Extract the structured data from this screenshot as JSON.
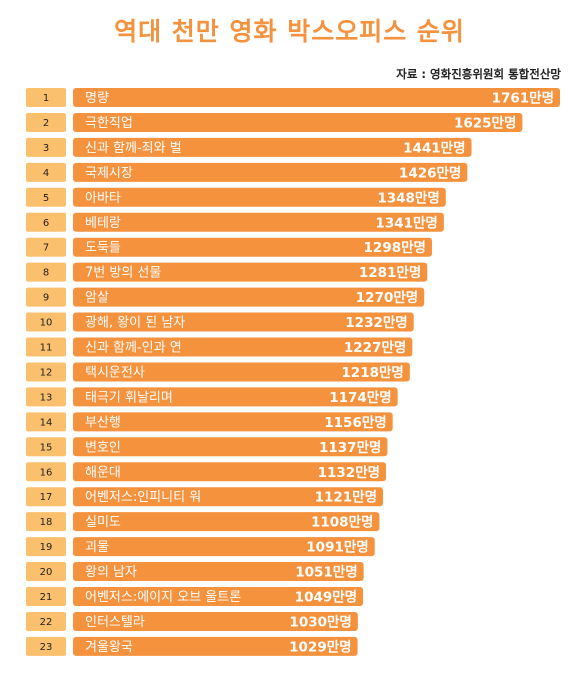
{
  "title": "역대 천만 영화 박스오피스 순위",
  "source": "자료 : 영화진흥위원회 통합전산망",
  "colors": {
    "bar": "#f5923e",
    "rank_box": "#fbc06e",
    "title": "#f5923e"
  },
  "chart_data": {
    "type": "bar",
    "orientation": "horizontal",
    "title": "역대 천만 영화 박스오피스 순위",
    "unit": "만명",
    "ranks": [
      "1",
      "2",
      "3",
      "4",
      "5",
      "6",
      "7",
      "8",
      "9",
      "10",
      "11",
      "12",
      "13",
      "14",
      "15",
      "16",
      "17",
      "18",
      "19",
      "20",
      "21",
      "22",
      "23"
    ],
    "categories": [
      "명량",
      "극한직업",
      "신과 함께-죄와 벌",
      "국제시장",
      "아바타",
      "베테랑",
      "도둑들",
      "7번 방의 선물",
      "암살",
      "광해, 왕이 된 남자",
      "신과 함께-인과 연",
      "택시운전사",
      "태극기 휘날리며",
      "부산행",
      "변호인",
      "해운대",
      "어벤저스:인피니티 워",
      "실미도",
      "괴물",
      "왕의 남자",
      "어벤저스:에이지 오브 울트론",
      "인터스텔라",
      "겨울왕국"
    ],
    "values": [
      1761,
      1625,
      1441,
      1426,
      1348,
      1341,
      1298,
      1281,
      1270,
      1232,
      1227,
      1218,
      1174,
      1156,
      1137,
      1132,
      1121,
      1108,
      1091,
      1051,
      1049,
      1030,
      1029
    ],
    "value_labels": [
      "1761만명",
      "1625만명",
      "1441만명",
      "1426만명",
      "1348만명",
      "1341만명",
      "1298만명",
      "1281만명",
      "1270만명",
      "1232만명",
      "1227만명",
      "1218만명",
      "1174만명",
      "1156만명",
      "1137만명",
      "1132만명",
      "1121만명",
      "1108만명",
      "1091만명",
      "1051만명",
      "1049만명",
      "1030만명",
      "1029만명"
    ]
  }
}
